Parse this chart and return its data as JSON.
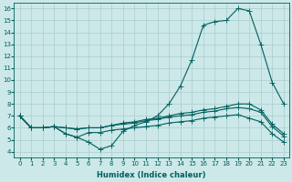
{
  "xlabel": "Humidex (Indice chaleur)",
  "xlim": [
    -0.5,
    23.5
  ],
  "ylim": [
    3.5,
    16.5
  ],
  "xticks": [
    0,
    1,
    2,
    3,
    4,
    5,
    6,
    7,
    8,
    9,
    10,
    11,
    12,
    13,
    14,
    15,
    16,
    17,
    18,
    19,
    20,
    21,
    22,
    23
  ],
  "yticks": [
    4,
    5,
    6,
    7,
    8,
    9,
    10,
    11,
    12,
    13,
    14,
    15,
    16
  ],
  "bg_color": "#cce8e8",
  "grid_color": "#aacece",
  "line_color": "#005f5f",
  "line1_y": [
    7.0,
    6.0,
    6.0,
    6.1,
    5.5,
    5.2,
    4.8,
    4.2,
    4.5,
    5.7,
    6.2,
    6.5,
    7.0,
    8.0,
    9.5,
    11.7,
    14.6,
    14.9,
    15.0,
    16.0,
    15.8,
    13.0,
    9.8,
    8.0
  ],
  "line2_y": [
    7.0,
    6.0,
    6.0,
    6.1,
    6.0,
    5.9,
    6.0,
    6.0,
    6.2,
    6.4,
    6.5,
    6.7,
    6.8,
    7.0,
    7.2,
    7.3,
    7.5,
    7.6,
    7.8,
    8.0,
    8.0,
    7.5,
    6.3,
    5.5
  ],
  "line3_y": [
    7.0,
    6.0,
    6.0,
    6.1,
    6.0,
    5.9,
    6.0,
    6.0,
    6.2,
    6.3,
    6.4,
    6.6,
    6.7,
    6.9,
    7.0,
    7.1,
    7.3,
    7.4,
    7.6,
    7.7,
    7.6,
    7.3,
    6.1,
    5.3
  ],
  "line4_y": [
    7.0,
    6.0,
    6.0,
    6.1,
    5.5,
    5.2,
    5.6,
    5.6,
    5.8,
    5.9,
    6.0,
    6.1,
    6.2,
    6.4,
    6.5,
    6.6,
    6.8,
    6.9,
    7.0,
    7.1,
    6.8,
    6.5,
    5.5,
    4.8
  ],
  "marker_size": 2.0,
  "line_width": 0.8,
  "label_fontsize": 6.0,
  "tick_fontsize": 5.0
}
